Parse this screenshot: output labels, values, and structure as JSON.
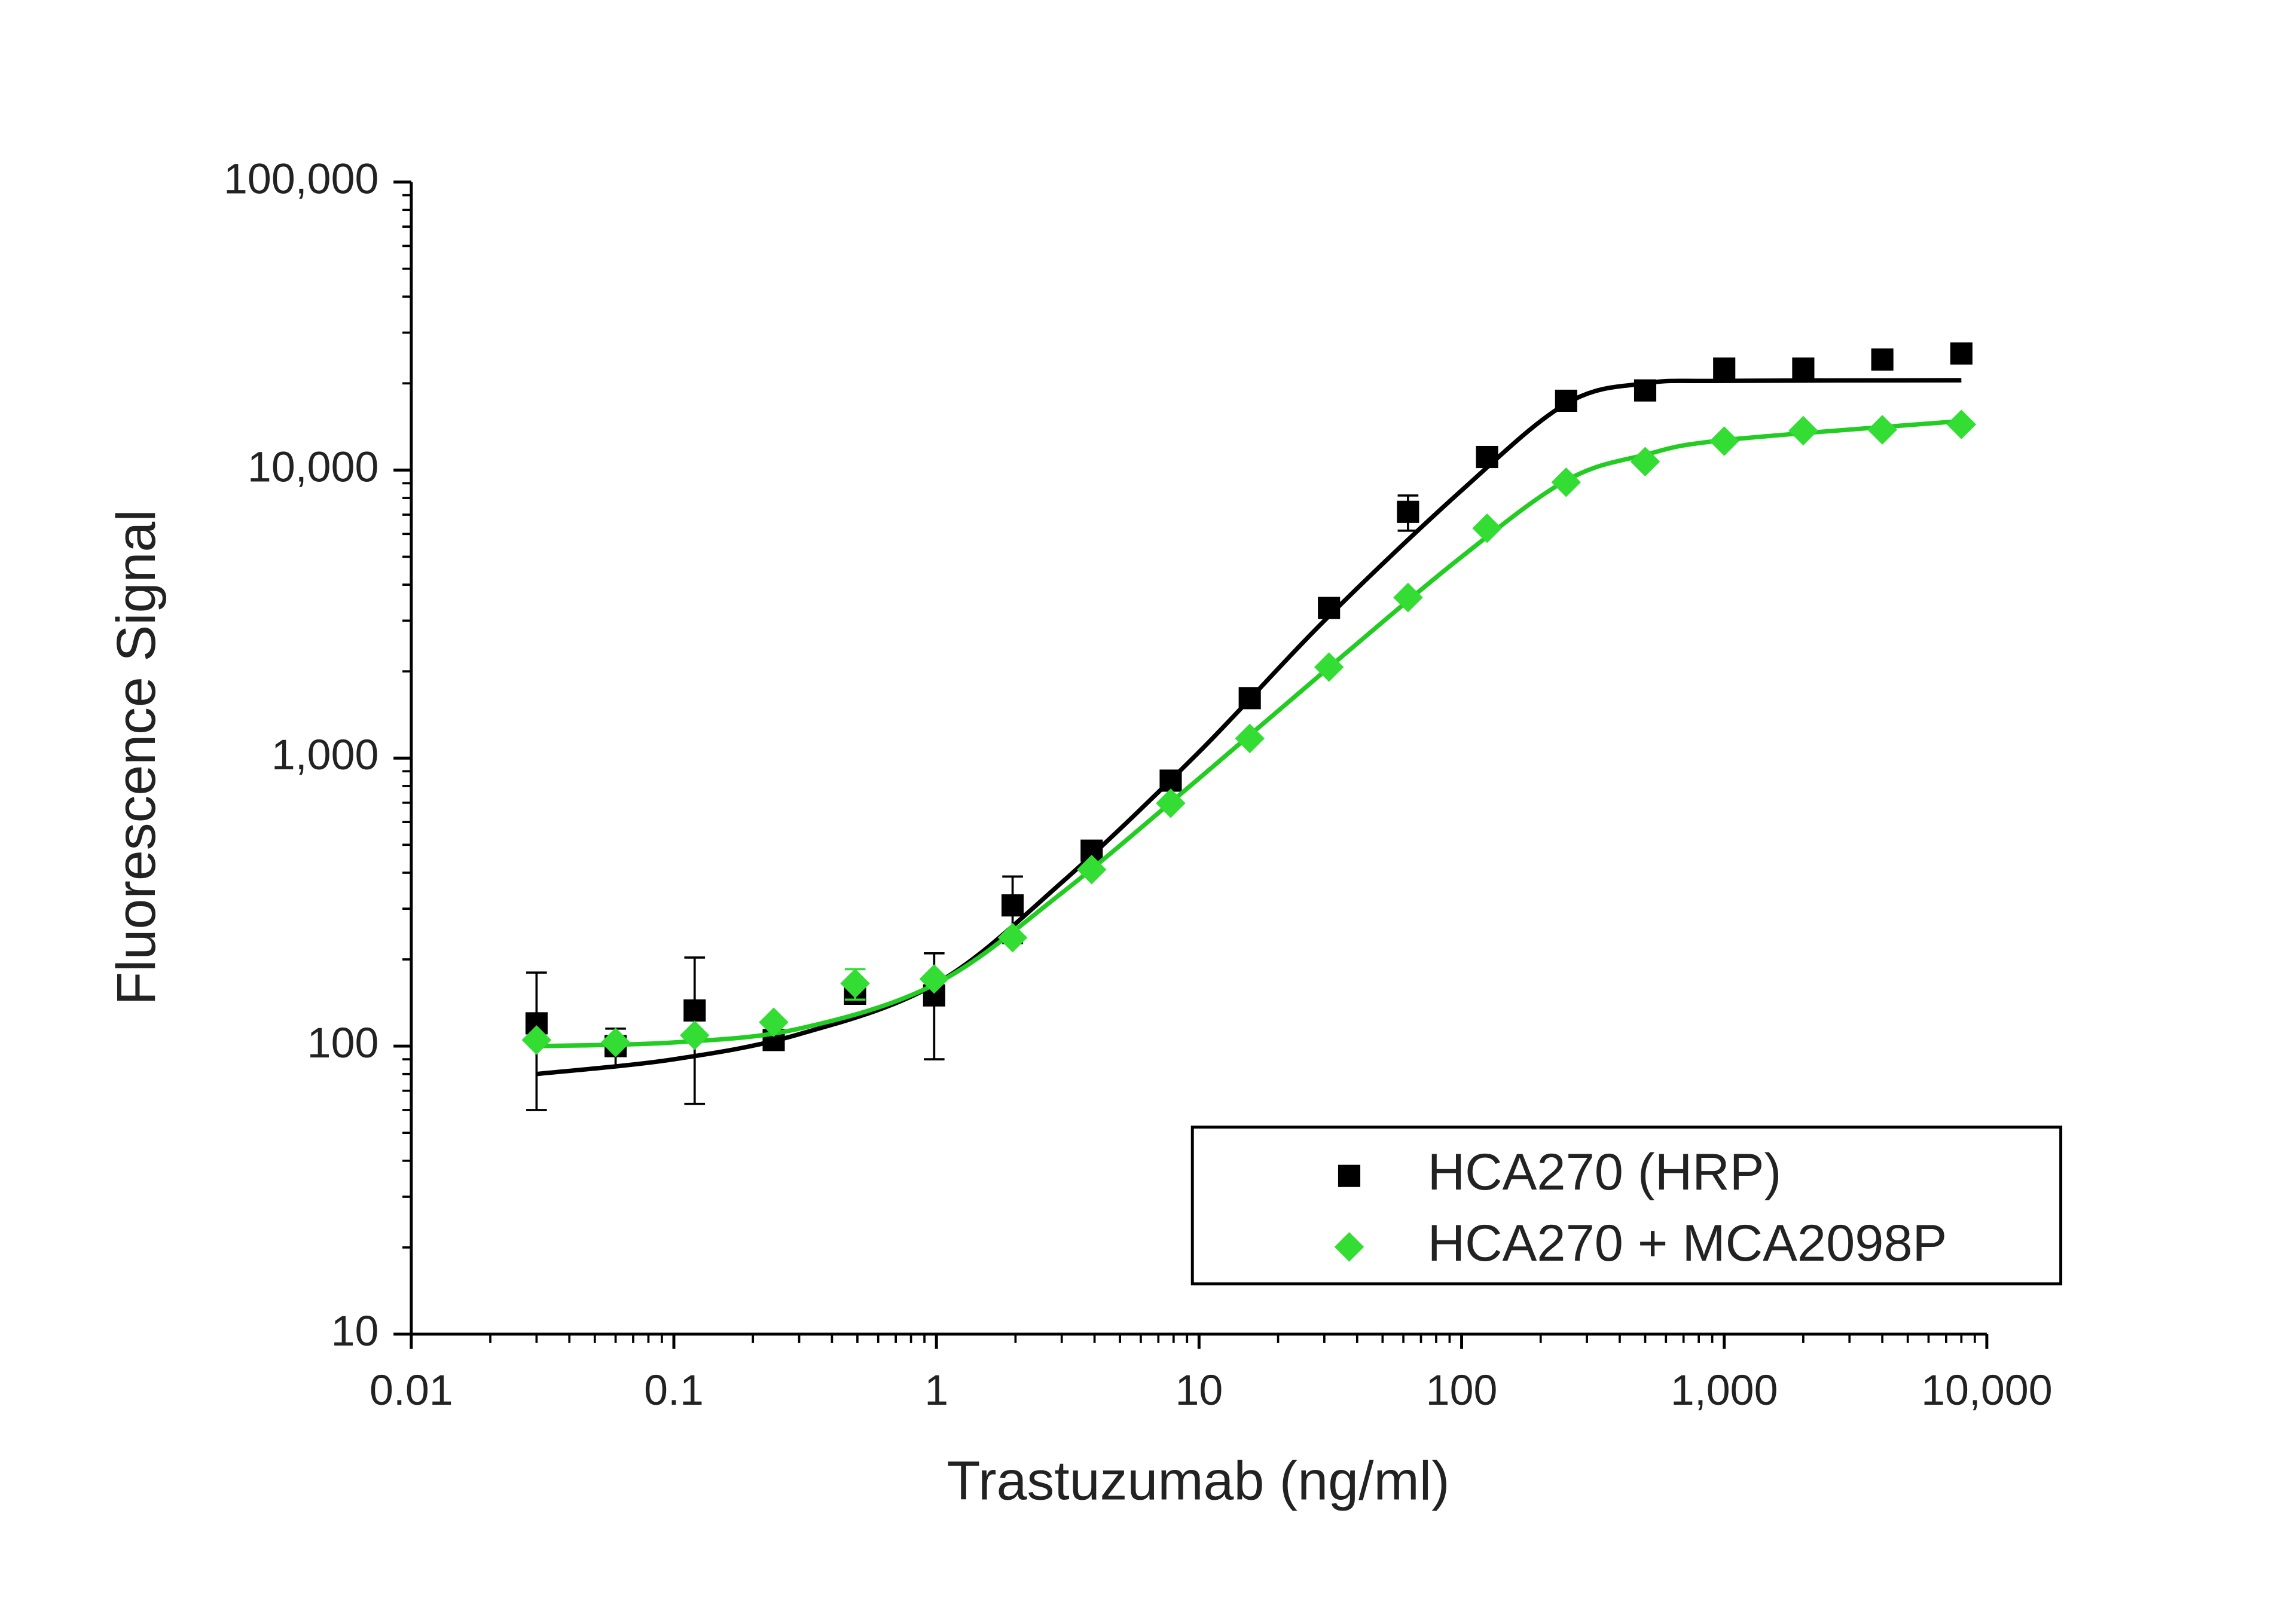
{
  "chart_data": {
    "type": "scatter",
    "x_label": "Trastuzumab (ng/ml)",
    "y_label": "Fluorescence Signal",
    "xscale": "log",
    "yscale": "log",
    "xlim": [
      0.01,
      10000
    ],
    "ylim": [
      10,
      100000
    ],
    "xticks": [
      0.01,
      0.1,
      1,
      10,
      100,
      {
        "value": 1000,
        "label": "1,000"
      },
      {
        "value": 10000,
        "label": "10,000"
      }
    ],
    "yticks": [
      10,
      100,
      {
        "value": 1000,
        "label": "1,000"
      },
      {
        "value": 10000,
        "label": "10,000"
      },
      {
        "value": 100000,
        "label": "100,000"
      }
    ],
    "minor_ticks": true,
    "legend": "lower right",
    "series": [
      {
        "name": "HCA270 (HRP)",
        "color": "#000000",
        "marker": "square",
        "x": [
          0.03,
          0.06,
          0.12,
          0.24,
          0.49,
          0.98,
          1.95,
          3.9,
          7.8,
          15.6,
          31.25,
          62.5,
          125,
          250,
          500,
          1000,
          2000,
          4000,
          8000
        ],
        "values": [
          120,
          100,
          133,
          105,
          152,
          150,
          308,
          477,
          835,
          1615,
          3320,
          7160,
          11100,
          17400,
          18900,
          22500,
          22500,
          24200,
          25400
        ],
        "errors": [
          60,
          15,
          70,
          null,
          null,
          60,
          80,
          null,
          null,
          null,
          null,
          1000,
          null,
          null,
          null,
          null,
          null,
          null,
          null
        ],
        "fit": {
          "x": [
            0.03,
            0.1,
            0.3,
            1,
            3,
            10,
            30,
            100,
            250,
            500,
            1000,
            8000
          ],
          "y": [
            80,
            90,
            110,
            165,
            370,
            1050,
            3000,
            8500,
            17000,
            20000,
            20400,
            20500
          ]
        }
      },
      {
        "name": "HCA270 + MCA2098P",
        "color": "#33dd33",
        "marker": "diamond",
        "x": [
          0.03,
          0.06,
          0.12,
          0.24,
          0.49,
          0.98,
          1.95,
          3.9,
          7.8,
          15.6,
          31.25,
          62.5,
          125,
          250,
          500,
          1000,
          2000,
          4000,
          8000
        ],
        "values": [
          105,
          103,
          109,
          121,
          165,
          171,
          238,
          410,
          697,
          1170,
          2070,
          3610,
          6280,
          9070,
          10700,
          12600,
          13700,
          13800,
          14400
        ],
        "errors": [
          null,
          null,
          null,
          null,
          20,
          null,
          null,
          null,
          null,
          null,
          null,
          null,
          null,
          null,
          null,
          null,
          null,
          null,
          null
        ],
        "fit": {
          "x": [
            0.03,
            0.1,
            0.3,
            1,
            3,
            10,
            30,
            100,
            250,
            500,
            1000,
            8000
          ],
          "y": [
            100,
            103,
            115,
            165,
            340,
            850,
            2000,
            5000,
            9200,
            11300,
            12700,
            14800
          ]
        }
      }
    ]
  }
}
